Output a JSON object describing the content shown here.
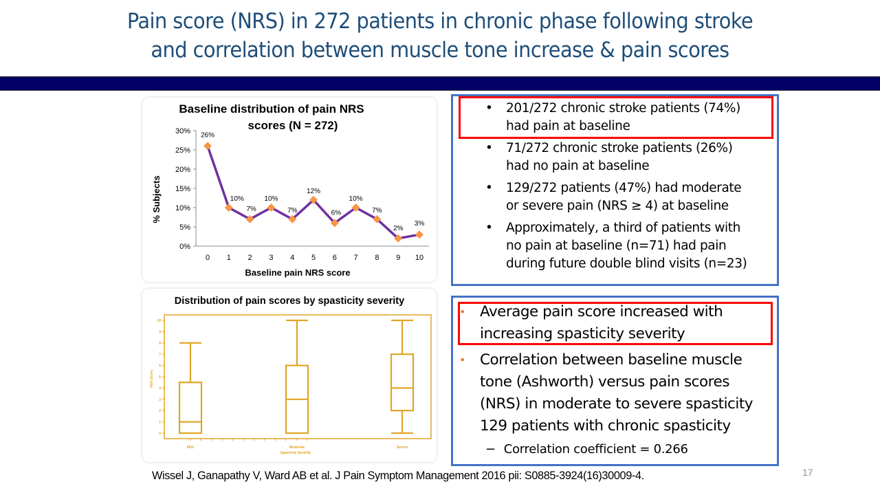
{
  "slide": {
    "title_lines": [
      "Pain score (NRS) in 272 patients in chronic phase following stroke",
      "and correlation between muscle tone increase & pain scores"
    ],
    "colors": {
      "title": "#1f4e79",
      "header_bar": "#000066",
      "panel_border": "#4472c4",
      "highlight": "#ff0000",
      "bullet_orange": "#ed7d31"
    },
    "citation": "Wissel J, Ganapathy V, Ward AB et al. J Pain Symptom Management 2016 pii:  S0885-3924(16)30009-4.",
    "page_number": "17"
  },
  "bullets_top": [
    {
      "lines": [
        "201/272 chronic stroke patients (74%)",
        "had pain at baseline"
      ],
      "highlighted": true
    },
    {
      "lines": [
        "71/272 chronic stroke patients (26%)",
        "had no pain at baseline"
      ],
      "highlighted": false
    },
    {
      "lines": [
        "129/272 patients (47%) had moderate",
        "or severe pain (NRS ≥ 4) at baseline"
      ],
      "highlighted": false
    },
    {
      "lines": [
        "Approximately, a third of patients with",
        "no pain at baseline (n=71) had pain",
        "during future double blind visits (n=23)"
      ],
      "highlighted": false
    }
  ],
  "bullets_bottom": [
    {
      "lines": [
        "Average pain score increased with",
        "increasing spasticity severity"
      ],
      "highlighted": true
    },
    {
      "lines": [
        "Correlation between baseline muscle",
        "tone (Ashworth) versus pain scores",
        "(NRS) in moderate to severe spasticity",
        "129 patients with chronic spasticity"
      ],
      "highlighted": false
    }
  ],
  "sub_bullet": {
    "dash": "−",
    "text": "Correlation coefficient = 0.266"
  },
  "bullet_char": "•",
  "chart_data": [
    {
      "type": "line",
      "title": "Baseline distribution of pain NRS scores (N = 272)",
      "title_lines": [
        "Baseline distribution of pain NRS",
        "scores (N = 272)"
      ],
      "xlabel": "Baseline pain NRS score",
      "ylabel": "% Subjects",
      "categories": [
        "0",
        "1",
        "2",
        "3",
        "4",
        "5",
        "6",
        "7",
        "8",
        "9",
        "10"
      ],
      "values": [
        26,
        10,
        7,
        10,
        7,
        12,
        6,
        10,
        7,
        2,
        3
      ],
      "data_labels": [
        "26%",
        "10%",
        "7%",
        "10%",
        "7%",
        "12%",
        "6%",
        "10%",
        "7%",
        "2%",
        "3%"
      ],
      "yticks": [
        "0%",
        "5%",
        "10%",
        "15%",
        "20%",
        "25%",
        "30%"
      ],
      "ylim": [
        0,
        30
      ],
      "grid": false,
      "legend": "none",
      "line_color": "#7030a0",
      "marker_color": "#f79646"
    },
    {
      "type": "boxplot",
      "title": "Distribution of pain scores by spasticity severity",
      "xlabel": "Spasticity Severity",
      "ylabel": "Pain Score",
      "categories": [
        "Mild",
        "Moderate",
        "Severe"
      ],
      "series": [
        {
          "name": "Mild",
          "min": 0,
          "q1": 0,
          "median": 1,
          "q3": 4.5,
          "max": 8
        },
        {
          "name": "Moderate",
          "min": 0,
          "q1": 0,
          "median": 3,
          "q3": 6,
          "max": 10
        },
        {
          "name": "Severe",
          "min": 0,
          "q1": 2,
          "median": 4,
          "q3": 7,
          "max": 10
        }
      ],
      "yticks": [
        "0",
        "1",
        "2",
        "3",
        "4",
        "5",
        "6",
        "7",
        "8",
        "9",
        "10"
      ],
      "ylim": [
        0,
        10
      ],
      "color": "#e0a526"
    }
  ]
}
